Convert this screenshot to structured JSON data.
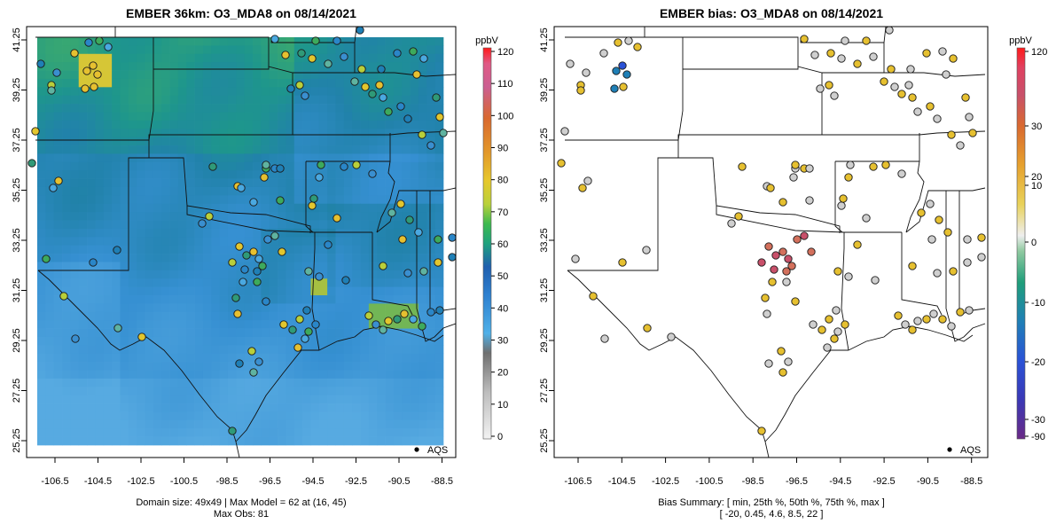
{
  "chart_data": [
    {
      "type": "heatmap",
      "title": "EMBER 36km: O3_MDA8 on 08/14/2021",
      "xticks": [
        "-106.5",
        "-104.5",
        "-102.5",
        "-100.5",
        "-98.5",
        "-96.5",
        "-94.5",
        "-92.5",
        "-90.5",
        "-88.5"
      ],
      "yticks": [
        "25.25",
        "27.25",
        "29.25",
        "31.25",
        "33.25",
        "35.25",
        "37.25",
        "39.25",
        "41.25"
      ],
      "xlim": [
        -107.0,
        -88.0
      ],
      "ylim": [
        25.25,
        41.25
      ],
      "colorbar": {
        "label": "ppbV",
        "ticks": [
          "0",
          "10",
          "20",
          "30",
          "40",
          "50",
          "60",
          "70",
          "80",
          "90",
          "100",
          "110",
          "120"
        ],
        "range": [
          0,
          120
        ]
      },
      "legend": {
        "label": "AQS",
        "position": "bottom-right"
      },
      "footer": [
        "Domain size: 49x49 | Max Model = 62 at (16, 45)",
        "Max Obs: 81"
      ],
      "grid": false
    },
    {
      "type": "scatter",
      "title": "EMBER bias: O3_MDA8 on 08/14/2021",
      "xticks": [
        "-106.5",
        "-104.5",
        "-102.5",
        "-100.5",
        "-98.5",
        "-96.5",
        "-94.5",
        "-92.5",
        "-90.5",
        "-88.5"
      ],
      "yticks": [
        "25.25",
        "27.25",
        "29.25",
        "31.25",
        "33.25",
        "35.25",
        "37.25",
        "39.25",
        "41.25"
      ],
      "xlim": [
        -107.0,
        -88.0
      ],
      "ylim": [
        25.25,
        41.25
      ],
      "colorbar": {
        "label": "ppbV",
        "ticks": [
          "120",
          "30",
          "20",
          "10",
          "0",
          "-10",
          "-20",
          "-30",
          "-90"
        ],
        "range": [
          -90,
          120
        ]
      },
      "legend": {
        "label": "AQS",
        "position": "bottom-right"
      },
      "footer": [
        "Bias Summary: [ min, 25th %, 50th %, 75th %, max ]",
        "[ -20,   0.45,   4.6,   8.5,   22 ]"
      ],
      "summary": {
        "min": -20,
        "p25": 0.45,
        "p50": 4.6,
        "p75": 8.5,
        "max": 22
      },
      "grid": false
    }
  ],
  "colors": {
    "model_low": "#4aa8e0",
    "model_mid": "#1f9a8a",
    "model_high": "#e8d23a",
    "bias_pos": "#e08a1e",
    "bias_neg": "#2a8a55"
  }
}
